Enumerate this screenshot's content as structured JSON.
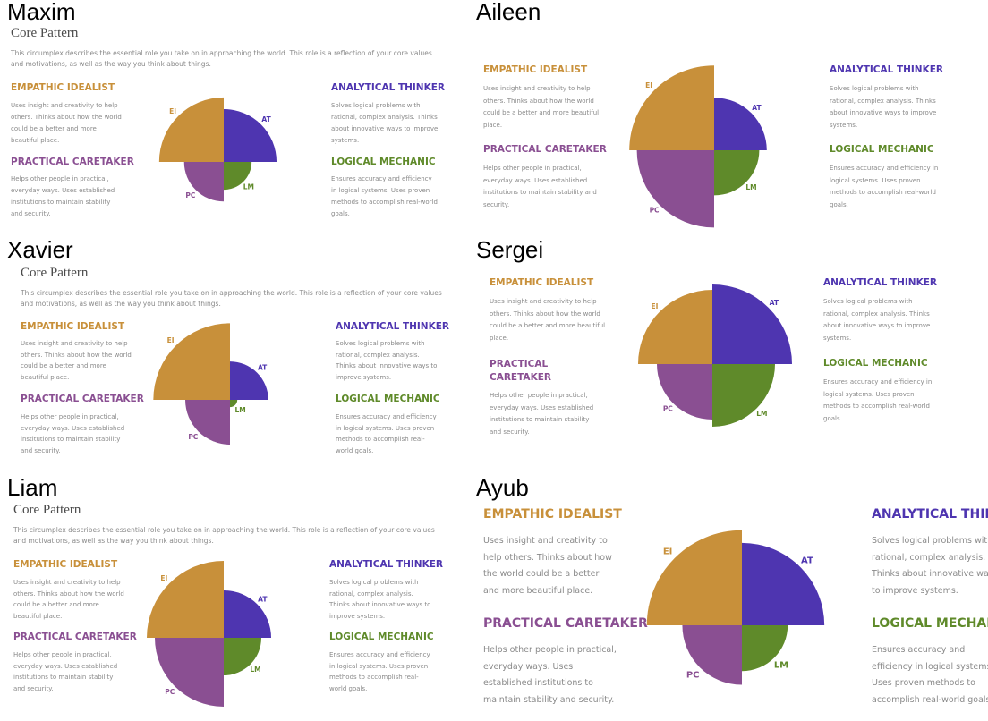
{
  "title": "Core Pattern",
  "description": "This circumplex describes the essential role you take on in approaching the world. This role is a reflection of your core values and motivations, as well as the way you think about things.",
  "quadrants": {
    "ei": {
      "heading": "EMPATHIC IDEALIST",
      "abbr": "EI",
      "color": "#c8903a",
      "body": "Uses insight and creativity to help others. Thinks about how the world could be a better and more beautiful place."
    },
    "pc": {
      "heading": "PRACTICAL CARETAKER",
      "abbr": "PC",
      "color": "#8a4f92",
      "body": "Helps other people in practical, everyday ways. Uses established institutions to maintain stability and security."
    },
    "at": {
      "heading": "ANALYTICAL THINKER",
      "abbr": "AT",
      "color": "#4e35b0",
      "body": "Solves logical problems with rational, complex analysis. Thinks about innovative ways to improve systems."
    },
    "lm": {
      "heading": "LOGICAL MECHANIC",
      "abbr": "LM",
      "color": "#5f8a2a",
      "body": "Ensures accuracy and efficiency in logical systems. Uses proven methods to accomplish real-world goals."
    }
  },
  "people": [
    {
      "name": "Maxim",
      "levels": {
        "ei": 0.88,
        "at": 0.72,
        "lm": 0.38,
        "pc": 0.54
      }
    },
    {
      "name": "Aileen",
      "levels": {
        "ei": 0.79,
        "at": 0.49,
        "lm": 0.42,
        "pc": 0.72
      }
    },
    {
      "name": "Xavier",
      "levels": {
        "ei": 0.84,
        "at": 0.42,
        "lm": 0.08,
        "pc": 0.49
      }
    },
    {
      "name": "Sergei",
      "levels": {
        "ei": 0.83,
        "at": 0.89,
        "lm": 0.7,
        "pc": 0.62
      }
    },
    {
      "name": "Liam",
      "levels": {
        "ei": 0.86,
        "at": 0.53,
        "lm": 0.42,
        "pc": 0.77
      }
    },
    {
      "name": "Ayub",
      "levels": {
        "ei": 0.83,
        "at": 0.72,
        "lm": 0.4,
        "pc": 0.52
      }
    }
  ]
}
